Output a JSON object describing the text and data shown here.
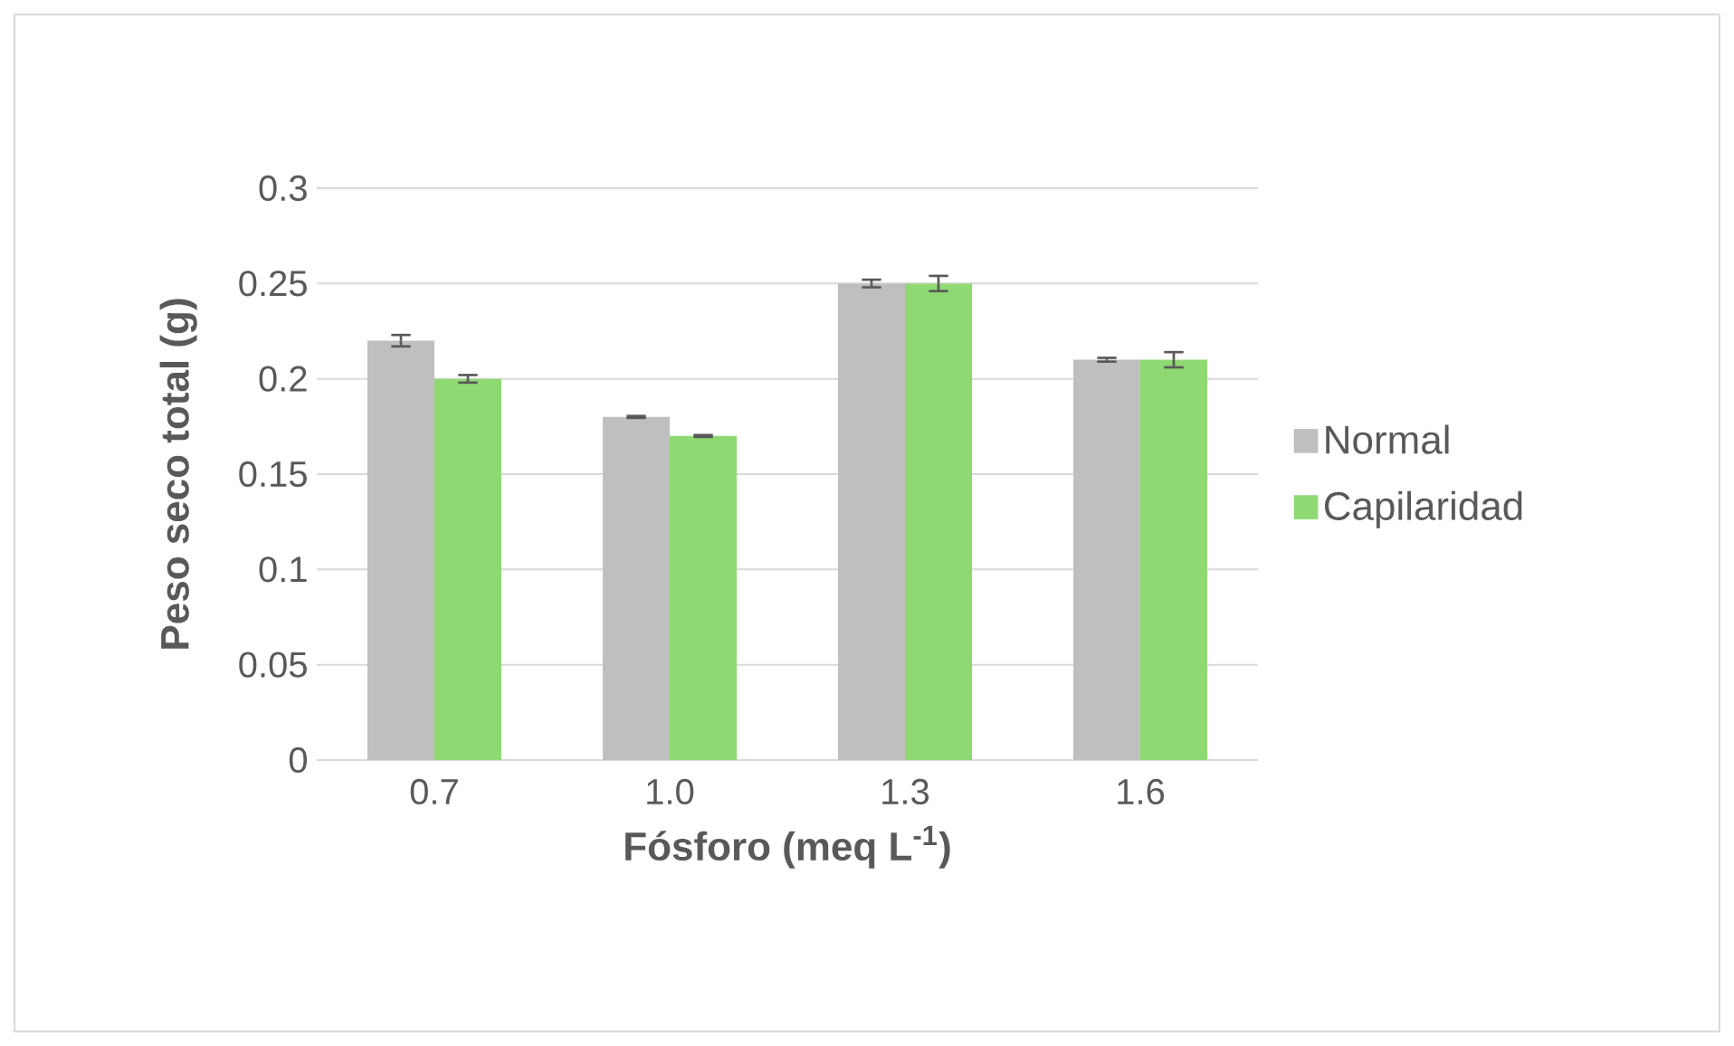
{
  "chart_data": {
    "type": "bar",
    "xlabel": "Fósforo (meq L$^{-1}$)",
    "ylabel": "Peso seco total (g)",
    "categories": [
      "0.7",
      "1.0",
      "1.3",
      "1.6"
    ],
    "series": [
      {
        "name": "Normal",
        "color": "#bfbfbf",
        "values": [
          0.22,
          0.18,
          0.25,
          0.21
        ],
        "errors": [
          0.003,
          0.0005,
          0.002,
          0.001
        ]
      },
      {
        "name": "Capilaridad",
        "color": "#8fd973",
        "values": [
          0.2,
          0.17,
          0.25,
          0.21
        ],
        "errors": [
          0.002,
          0.0005,
          0.004,
          0.004
        ]
      }
    ],
    "ylim": [
      0,
      0.3
    ],
    "yticks": [
      0,
      0.05,
      0.1,
      0.15,
      0.2,
      0.25,
      0.3
    ],
    "grid": "y",
    "legend": "right"
  }
}
